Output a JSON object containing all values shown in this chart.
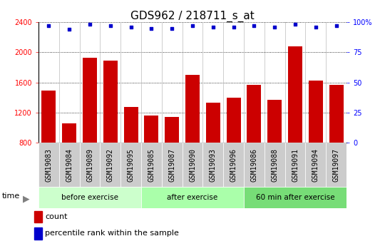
{
  "title": "GDS962 / 218711_s_at",
  "samples": [
    "GSM19083",
    "GSM19084",
    "GSM19089",
    "GSM19092",
    "GSM19095",
    "GSM19085",
    "GSM19087",
    "GSM19090",
    "GSM19093",
    "GSM19096",
    "GSM19086",
    "GSM19088",
    "GSM19091",
    "GSM19094",
    "GSM19097"
  ],
  "counts": [
    1490,
    1060,
    1930,
    1890,
    1270,
    1160,
    1140,
    1700,
    1330,
    1400,
    1570,
    1370,
    2080,
    1620,
    1570
  ],
  "percentiles": [
    97,
    94,
    98,
    97,
    96,
    95,
    95,
    97,
    96,
    96,
    97,
    96,
    98,
    96,
    97
  ],
  "groups": [
    {
      "label": "before exercise",
      "start": 0,
      "end": 5,
      "color": "#ccffcc"
    },
    {
      "label": "after exercise",
      "start": 5,
      "end": 10,
      "color": "#aaffaa"
    },
    {
      "label": "60 min after exercise",
      "start": 10,
      "end": 15,
      "color": "#77dd77"
    }
  ],
  "ylim": [
    800,
    2400
  ],
  "y2lim": [
    0,
    100
  ],
  "y_ticks": [
    800,
    1200,
    1600,
    2000,
    2400
  ],
  "y2_ticks": [
    0,
    25,
    50,
    75,
    100
  ],
  "bar_color": "#cc0000",
  "scatter_color": "#0000cc",
  "grid_color": "#000000",
  "plot_bg": "#ffffff",
  "label_bg": "#cccccc",
  "title_fontsize": 11,
  "tick_fontsize": 7,
  "legend_fontsize": 8
}
